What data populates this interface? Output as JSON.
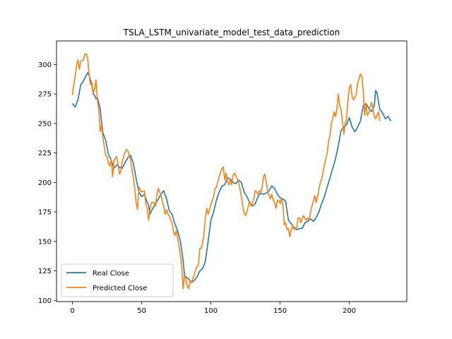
{
  "chart_data": {
    "type": "line",
    "title": "TSLA_LSTM_univariate_model_test_data_prediction",
    "xlabel": "",
    "ylabel": "",
    "xlim": [
      -11.5,
      241.5
    ],
    "ylim": [
      99,
      320
    ],
    "x_ticks": [
      0,
      50,
      100,
      150,
      200
    ],
    "y_ticks": [
      100,
      125,
      150,
      175,
      200,
      225,
      250,
      275,
      300
    ],
    "grid": false,
    "legend_position": "lower-left",
    "series": [
      {
        "name": "Real Close",
        "color": "#1f77b4",
        "points": [
          [
            0,
            267
          ],
          [
            2,
            264
          ],
          [
            4,
            270
          ],
          [
            6,
            283
          ],
          [
            8,
            286
          ],
          [
            10,
            291
          ],
          [
            11,
            293
          ],
          [
            12,
            291
          ],
          [
            14,
            283
          ],
          [
            15,
            275
          ],
          [
            16,
            274
          ],
          [
            17,
            271
          ],
          [
            18,
            272
          ],
          [
            20,
            263
          ],
          [
            21,
            252
          ],
          [
            22,
            242
          ],
          [
            24,
            236
          ],
          [
            26,
            224
          ],
          [
            28,
            219
          ],
          [
            30,
            212
          ],
          [
            32,
            215
          ],
          [
            34,
            213
          ],
          [
            36,
            212
          ],
          [
            38,
            217
          ],
          [
            40,
            221
          ],
          [
            42,
            223
          ],
          [
            44,
            216
          ],
          [
            45,
            210
          ],
          [
            46,
            203
          ],
          [
            48,
            192
          ],
          [
            50,
            188
          ],
          [
            52,
            190
          ],
          [
            54,
            183
          ],
          [
            55,
            181
          ],
          [
            56,
            173
          ],
          [
            58,
            178
          ],
          [
            60,
            182
          ],
          [
            62,
            186
          ],
          [
            64,
            190
          ],
          [
            66,
            193
          ],
          [
            68,
            186
          ],
          [
            70,
            176
          ],
          [
            72,
            173
          ],
          [
            74,
            165
          ],
          [
            76,
            159
          ],
          [
            78,
            150
          ],
          [
            79,
            142
          ],
          [
            80,
            133
          ],
          [
            81,
            121
          ],
          [
            82,
            120
          ],
          [
            84,
            118
          ],
          [
            86,
            115
          ],
          [
            88,
            117
          ],
          [
            90,
            120
          ],
          [
            92,
            125
          ],
          [
            94,
            127
          ],
          [
            96,
            133
          ],
          [
            98,
            150
          ],
          [
            100,
            168
          ],
          [
            102,
            175
          ],
          [
            104,
            185
          ],
          [
            106,
            192
          ],
          [
            108,
            197
          ],
          [
            110,
            198
          ],
          [
            112,
            204
          ],
          [
            114,
            203
          ],
          [
            116,
            200
          ],
          [
            118,
            199
          ],
          [
            120,
            202
          ],
          [
            122,
            200
          ],
          [
            124,
            192
          ],
          [
            126,
            188
          ],
          [
            128,
            183
          ],
          [
            130,
            180
          ],
          [
            132,
            182
          ],
          [
            134,
            188
          ],
          [
            136,
            191
          ],
          [
            138,
            190
          ],
          [
            140,
            191
          ],
          [
            142,
            193
          ],
          [
            144,
            197
          ],
          [
            146,
            195
          ],
          [
            148,
            190
          ],
          [
            150,
            187
          ],
          [
            152,
            186
          ],
          [
            154,
            184
          ],
          [
            156,
            168
          ],
          [
            158,
            165
          ],
          [
            160,
            162
          ],
          [
            162,
            160
          ],
          [
            164,
            161
          ],
          [
            166,
            161
          ],
          [
            168,
            166
          ],
          [
            170,
            167
          ],
          [
            172,
            169
          ],
          [
            174,
            167
          ],
          [
            176,
            170
          ],
          [
            178,
            175
          ],
          [
            180,
            182
          ],
          [
            182,
            188
          ],
          [
            184,
            196
          ],
          [
            186,
            204
          ],
          [
            188,
            212
          ],
          [
            190,
            220
          ],
          [
            192,
            231
          ],
          [
            194,
            244
          ],
          [
            196,
            247
          ],
          [
            198,
            249
          ],
          [
            200,
            255
          ],
          [
            202,
            247
          ],
          [
            204,
            243
          ],
          [
            206,
            247
          ],
          [
            208,
            252
          ],
          [
            210,
            265
          ],
          [
            212,
            267
          ],
          [
            214,
            263
          ],
          [
            216,
            260
          ],
          [
            218,
            265
          ],
          [
            219,
            278
          ],
          [
            220,
            276
          ],
          [
            222,
            262
          ],
          [
            224,
            259
          ],
          [
            226,
            254
          ],
          [
            228,
            256
          ],
          [
            230,
            252
          ]
        ]
      },
      {
        "name": "Predicted Close",
        "color": "#ff7f0e",
        "points": [
          [
            0,
            274
          ],
          [
            1,
            283
          ],
          [
            2,
            290
          ],
          [
            3,
            299
          ],
          [
            4,
            304
          ],
          [
            5,
            296
          ],
          [
            6,
            303
          ],
          [
            8,
            304
          ],
          [
            9,
            309
          ],
          [
            10,
            309
          ],
          [
            11,
            305
          ],
          [
            12,
            292
          ],
          [
            13,
            283
          ],
          [
            14,
            285
          ],
          [
            15,
            276
          ],
          [
            16,
            279
          ],
          [
            17,
            287
          ],
          [
            18,
            270
          ],
          [
            19,
            262
          ],
          [
            20,
            243
          ],
          [
            21,
            249
          ],
          [
            22,
            238
          ],
          [
            23,
            231
          ],
          [
            24,
            223
          ],
          [
            25,
            222
          ],
          [
            26,
            216
          ],
          [
            27,
            214
          ],
          [
            28,
            220
          ],
          [
            29,
            205
          ],
          [
            30,
            219
          ],
          [
            32,
            222
          ],
          [
            33,
            215
          ],
          [
            34,
            207
          ],
          [
            35,
            210
          ],
          [
            36,
            218
          ],
          [
            38,
            226
          ],
          [
            39,
            228
          ],
          [
            40,
            227
          ],
          [
            42,
            219
          ],
          [
            43,
            211
          ],
          [
            44,
            204
          ],
          [
            45,
            195
          ],
          [
            46,
            183
          ],
          [
            47,
            177
          ],
          [
            48,
            196
          ],
          [
            50,
            192
          ],
          [
            52,
            193
          ],
          [
            53,
            182
          ],
          [
            54,
            178
          ],
          [
            55,
            168
          ],
          [
            56,
            176
          ],
          [
            57,
            183
          ],
          [
            59,
            183
          ],
          [
            60,
            180
          ],
          [
            61,
            190
          ],
          [
            62,
            195
          ],
          [
            64,
            189
          ],
          [
            66,
            179
          ],
          [
            67,
            173
          ],
          [
            68,
            177
          ],
          [
            69,
            173
          ],
          [
            70,
            172
          ],
          [
            71,
            168
          ],
          [
            72,
            166
          ],
          [
            73,
            158
          ],
          [
            74,
            155
          ],
          [
            75,
            159
          ],
          [
            76,
            153
          ],
          [
            77,
            146
          ],
          [
            78,
            138
          ],
          [
            79,
            128
          ],
          [
            80,
            110
          ],
          [
            81,
            121
          ],
          [
            82,
            118
          ],
          [
            83,
            112
          ],
          [
            84,
            110
          ],
          [
            85,
            117
          ],
          [
            86,
            115
          ],
          [
            88,
            122
          ],
          [
            89,
            126
          ],
          [
            90,
            129
          ],
          [
            91,
            130
          ],
          [
            92,
            144
          ],
          [
            93,
            144
          ],
          [
            94,
            149
          ],
          [
            95,
            156
          ],
          [
            96,
            170
          ],
          [
            97,
            178
          ],
          [
            98,
            173
          ],
          [
            100,
            181
          ],
          [
            102,
            188
          ],
          [
            103,
            195
          ],
          [
            104,
            196
          ],
          [
            106,
            205
          ],
          [
            108,
            212
          ],
          [
            109,
            213
          ],
          [
            110,
            202
          ],
          [
            111,
            208
          ],
          [
            112,
            200
          ],
          [
            113,
            198
          ],
          [
            114,
            203
          ],
          [
            115,
            198
          ],
          [
            116,
            206
          ],
          [
            117,
            208
          ],
          [
            118,
            206
          ],
          [
            120,
            200
          ],
          [
            121,
            195
          ],
          [
            122,
            188
          ],
          [
            123,
            180
          ],
          [
            124,
            174
          ],
          [
            125,
            172
          ],
          [
            126,
            175
          ],
          [
            127,
            180
          ],
          [
            128,
            184
          ],
          [
            129,
            180
          ],
          [
            130,
            183
          ],
          [
            131,
            186
          ],
          [
            132,
            193
          ],
          [
            133,
            192
          ],
          [
            134,
            190
          ],
          [
            135,
            193
          ],
          [
            136,
            192
          ],
          [
            137,
            196
          ],
          [
            138,
            205
          ],
          [
            139,
            207
          ],
          [
            140,
            200
          ],
          [
            141,
            193
          ],
          [
            142,
            189
          ],
          [
            143,
            186
          ],
          [
            144,
            190
          ],
          [
            145,
            185
          ],
          [
            146,
            183
          ],
          [
            147,
            178
          ],
          [
            148,
            185
          ],
          [
            149,
            185
          ],
          [
            150,
            182
          ],
          [
            151,
            187
          ],
          [
            152,
            181
          ],
          [
            153,
            164
          ],
          [
            154,
            166
          ],
          [
            155,
            160
          ],
          [
            156,
            161
          ],
          [
            157,
            154
          ],
          [
            158,
            160
          ],
          [
            159,
            164
          ],
          [
            160,
            160
          ],
          [
            162,
            162
          ],
          [
            163,
            170
          ],
          [
            164,
            170
          ],
          [
            165,
            166
          ],
          [
            166,
            170
          ],
          [
            167,
            172
          ],
          [
            168,
            169
          ],
          [
            169,
            168
          ],
          [
            170,
            170
          ],
          [
            171,
            168
          ],
          [
            172,
            175
          ],
          [
            173,
            180
          ],
          [
            174,
            184
          ],
          [
            175,
            189
          ],
          [
            176,
            183
          ],
          [
            177,
            188
          ],
          [
            178,
            194
          ],
          [
            179,
            200
          ],
          [
            180,
            203
          ],
          [
            181,
            209
          ],
          [
            182,
            215
          ],
          [
            183,
            220
          ],
          [
            184,
            225
          ],
          [
            185,
            235
          ],
          [
            186,
            240
          ],
          [
            187,
            250
          ],
          [
            188,
            254
          ],
          [
            189,
            260
          ],
          [
            190,
            256
          ],
          [
            191,
            262
          ],
          [
            192,
            275
          ],
          [
            193,
            265
          ],
          [
            194,
            262
          ],
          [
            195,
            252
          ],
          [
            196,
            241
          ],
          [
            197,
            250
          ],
          [
            198,
            254
          ],
          [
            199,
            270
          ],
          [
            200,
            280
          ],
          [
            201,
            283
          ],
          [
            202,
            273
          ],
          [
            203,
            270
          ],
          [
            204,
            272
          ],
          [
            205,
            275
          ],
          [
            206,
            284
          ],
          [
            207,
            288
          ],
          [
            208,
            292
          ],
          [
            209,
            290
          ],
          [
            210,
            278
          ],
          [
            211,
            257
          ],
          [
            212,
            267
          ],
          [
            213,
            257
          ],
          [
            214,
            259
          ],
          [
            215,
            264
          ],
          [
            216,
            268
          ],
          [
            217,
            263
          ],
          [
            218,
            256
          ],
          [
            219,
            254
          ],
          [
            220,
            257
          ],
          [
            221,
            260
          ],
          [
            222,
            252
          ]
        ]
      }
    ]
  }
}
